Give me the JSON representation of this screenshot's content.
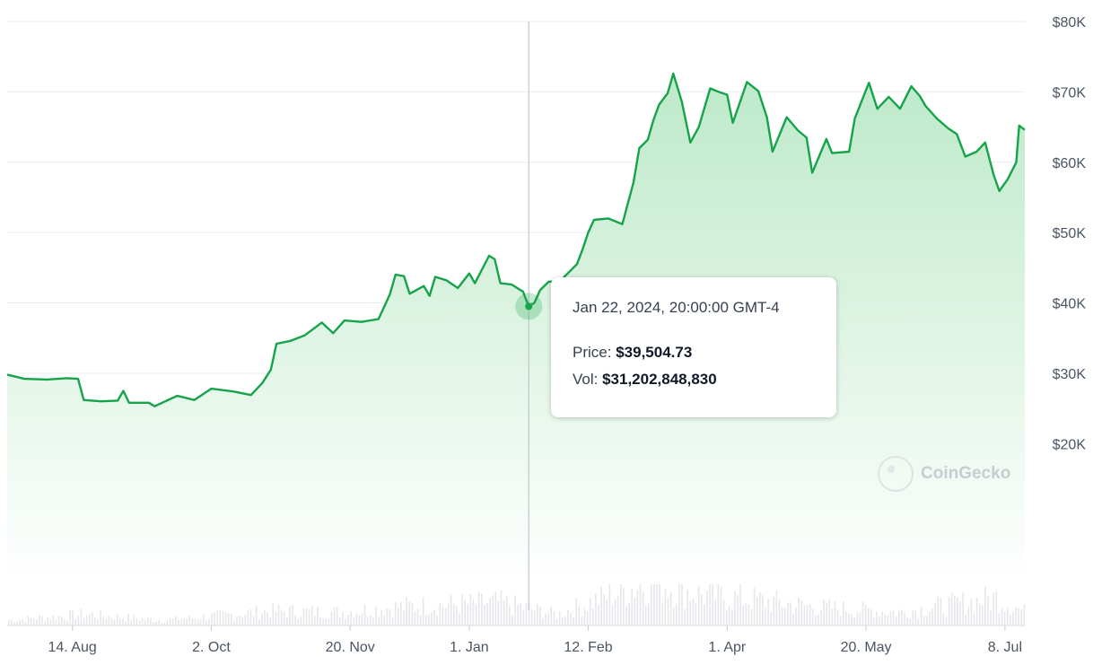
{
  "chart_data": {
    "type": "area",
    "y_axis": {
      "position": "right",
      "ticks": [
        "$80K",
        "$70K",
        "$60K",
        "$50K",
        "$40K",
        "$30K",
        "$20K"
      ],
      "tick_values": [
        80000,
        70000,
        60000,
        50000,
        40000,
        30000,
        20000
      ],
      "ylim": [
        0,
        80000
      ]
    },
    "x_axis": {
      "ticks": [
        "14. Aug",
        "2. Oct",
        "20. Nov",
        "1. Jan",
        "12. Feb",
        "1. Apr",
        "20. May",
        "8. Jul"
      ],
      "tick_dates": [
        "2023-08-14",
        "2023-10-02",
        "2023-11-20",
        "2024-01-01",
        "2024-02-12",
        "2024-04-01",
        "2024-05-20",
        "2024-07-08"
      ],
      "xlim": [
        "2023-07-22",
        "2024-07-15"
      ]
    },
    "grid": true,
    "colors": {
      "line": "#16a34a",
      "fill_top": "#bde9c9",
      "fill_bottom": "#ffffff",
      "volume": "#e5e7eb"
    },
    "series": [
      {
        "values": [
          [
            "2023-07-22",
            29800
          ],
          [
            "2023-07-28",
            29200
          ],
          [
            "2023-08-05",
            29100
          ],
          [
            "2023-08-12",
            29300
          ],
          [
            "2023-08-16",
            29200
          ],
          [
            "2023-08-18",
            26200
          ],
          [
            "2023-08-24",
            26000
          ],
          [
            "2023-08-30",
            26100
          ],
          [
            "2023-09-01",
            27500
          ],
          [
            "2023-09-03",
            25800
          ],
          [
            "2023-09-10",
            25800
          ],
          [
            "2023-09-12",
            25300
          ],
          [
            "2023-09-20",
            26800
          ],
          [
            "2023-09-26",
            26200
          ],
          [
            "2023-10-02",
            27800
          ],
          [
            "2023-10-10",
            27400
          ],
          [
            "2023-10-16",
            26900
          ],
          [
            "2023-10-20",
            28600
          ],
          [
            "2023-10-23",
            30500
          ],
          [
            "2023-10-25",
            34200
          ],
          [
            "2023-10-30",
            34600
          ],
          [
            "2023-11-04",
            35400
          ],
          [
            "2023-11-10",
            37200
          ],
          [
            "2023-11-14",
            35700
          ],
          [
            "2023-11-18",
            37500
          ],
          [
            "2023-11-24",
            37300
          ],
          [
            "2023-11-30",
            37700
          ],
          [
            "2023-12-04",
            41200
          ],
          [
            "2023-12-06",
            44000
          ],
          [
            "2023-12-09",
            43800
          ],
          [
            "2023-12-11",
            41300
          ],
          [
            "2023-12-16",
            42400
          ],
          [
            "2023-12-18",
            41000
          ],
          [
            "2023-12-20",
            43700
          ],
          [
            "2023-12-24",
            43200
          ],
          [
            "2023-12-28",
            42100
          ],
          [
            "2024-01-01",
            44200
          ],
          [
            "2024-01-03",
            42800
          ],
          [
            "2024-01-08",
            46700
          ],
          [
            "2024-01-10",
            46200
          ],
          [
            "2024-01-12",
            42800
          ],
          [
            "2024-01-16",
            42600
          ],
          [
            "2024-01-20",
            41600
          ],
          [
            "2024-01-22",
            39504.73
          ],
          [
            "2024-01-24",
            40000
          ],
          [
            "2024-01-26",
            41800
          ],
          [
            "2024-01-29",
            43000
          ],
          [
            "2024-02-02",
            43100
          ],
          [
            "2024-02-08",
            45500
          ],
          [
            "2024-02-10",
            47600
          ],
          [
            "2024-02-12",
            50000
          ],
          [
            "2024-02-14",
            51800
          ],
          [
            "2024-02-19",
            52000
          ],
          [
            "2024-02-24",
            51200
          ],
          [
            "2024-02-28",
            57200
          ],
          [
            "2024-03-01",
            62000
          ],
          [
            "2024-03-04",
            63200
          ],
          [
            "2024-03-06",
            66000
          ],
          [
            "2024-03-08",
            68200
          ],
          [
            "2024-03-11",
            69800
          ],
          [
            "2024-03-13",
            72600
          ],
          [
            "2024-03-16",
            68600
          ],
          [
            "2024-03-19",
            62800
          ],
          [
            "2024-03-22",
            65000
          ],
          [
            "2024-03-26",
            70500
          ],
          [
            "2024-03-29",
            70000
          ],
          [
            "2024-04-01",
            69600
          ],
          [
            "2024-04-03",
            65600
          ],
          [
            "2024-04-08",
            71400
          ],
          [
            "2024-04-12",
            70100
          ],
          [
            "2024-04-15",
            66400
          ],
          [
            "2024-04-17",
            61500
          ],
          [
            "2024-04-22",
            66400
          ],
          [
            "2024-04-26",
            64500
          ],
          [
            "2024-04-29",
            63500
          ],
          [
            "2024-05-01",
            58500
          ],
          [
            "2024-05-06",
            63300
          ],
          [
            "2024-05-08",
            61300
          ],
          [
            "2024-05-14",
            61500
          ],
          [
            "2024-05-16",
            66200
          ],
          [
            "2024-05-21",
            71300
          ],
          [
            "2024-05-24",
            67600
          ],
          [
            "2024-05-28",
            69300
          ],
          [
            "2024-06-01",
            67600
          ],
          [
            "2024-06-05",
            70800
          ],
          [
            "2024-06-08",
            69400
          ],
          [
            "2024-06-10",
            68000
          ],
          [
            "2024-06-14",
            66200
          ],
          [
            "2024-06-18",
            64800
          ],
          [
            "2024-06-21",
            64000
          ],
          [
            "2024-06-24",
            60800
          ],
          [
            "2024-06-28",
            61500
          ],
          [
            "2024-07-01",
            62800
          ],
          [
            "2024-07-04",
            58200
          ],
          [
            "2024-07-06",
            55900
          ],
          [
            "2024-07-09",
            57600
          ],
          [
            "2024-07-12",
            60000
          ],
          [
            "2024-07-13",
            65200
          ],
          [
            "2024-07-15",
            64600
          ]
        ]
      }
    ],
    "volume_profile": [
      [
        "2023-07-22",
        0.12
      ],
      [
        "2023-08-18",
        0.25
      ],
      [
        "2023-09-15",
        0.12
      ],
      [
        "2023-10-24",
        0.33
      ],
      [
        "2023-11-15",
        0.3
      ],
      [
        "2023-12-08",
        0.42
      ],
      [
        "2024-01-11",
        0.52
      ],
      [
        "2024-02-01",
        0.25
      ],
      [
        "2024-02-29",
        0.9
      ],
      [
        "2024-03-05",
        1.0
      ],
      [
        "2024-03-20",
        0.72
      ],
      [
        "2024-04-14",
        0.55
      ],
      [
        "2024-05-01",
        0.42
      ],
      [
        "2024-06-01",
        0.3
      ],
      [
        "2024-07-05",
        0.62
      ],
      [
        "2024-07-15",
        0.3
      ]
    ],
    "hover_date": "2024-01-22",
    "tooltip": {
      "date": "Jan 22, 2024, 20:00:00 GMT-4",
      "price_label": "Price:",
      "price": "$39,504.73",
      "volume_label": "Vol:",
      "volume": "$31,202,848,830"
    },
    "watermark": "CoinGecko"
  }
}
